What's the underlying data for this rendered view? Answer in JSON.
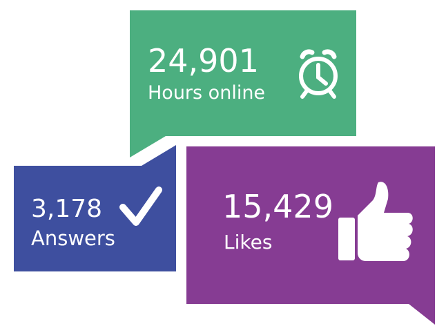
{
  "stats": [
    {
      "value": "24,901",
      "label": "Hours online"
    },
    {
      "value": "3,178",
      "label": "Answers"
    },
    {
      "value": "15,429",
      "label": "Likes"
    }
  ]
}
